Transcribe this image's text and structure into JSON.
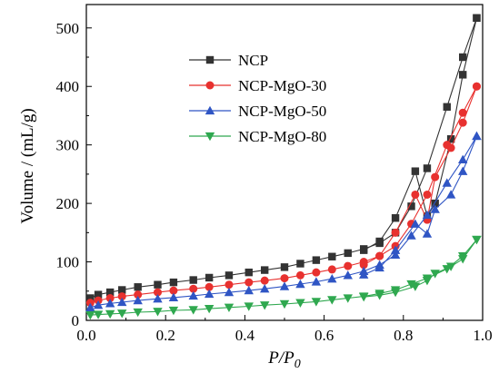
{
  "chart_data": {
    "type": "line",
    "xlabel": {
      "main": "P/P",
      "sub": "0"
    },
    "ylabel": "Volume / (mL/g)",
    "xlim": [
      0.0,
      1.0
    ],
    "ylim": [
      0,
      540
    ],
    "xticks": [
      0.0,
      0.2,
      0.4,
      0.6,
      0.8,
      1.0
    ],
    "xtick_labels": [
      "0.0",
      "0.2",
      "0.4",
      "0.6",
      "0.8",
      "1.0"
    ],
    "yticks": [
      0,
      100,
      200,
      300,
      400,
      500
    ],
    "ytick_labels": [
      "0",
      "100",
      "200",
      "300",
      "400",
      "500"
    ],
    "grid": false,
    "legend_position": "upper-left",
    "series": [
      {
        "name": "NCP",
        "color": "#333333",
        "marker": "square",
        "adsorption": [
          [
            0.01,
            38
          ],
          [
            0.03,
            44
          ],
          [
            0.06,
            48
          ],
          [
            0.09,
            52
          ],
          [
            0.13,
            57
          ],
          [
            0.18,
            61
          ],
          [
            0.22,
            65
          ],
          [
            0.27,
            69
          ],
          [
            0.31,
            73
          ],
          [
            0.36,
            77
          ],
          [
            0.41,
            82
          ],
          [
            0.45,
            86
          ],
          [
            0.5,
            91
          ],
          [
            0.54,
            97
          ],
          [
            0.58,
            103
          ],
          [
            0.62,
            109
          ],
          [
            0.66,
            115
          ],
          [
            0.7,
            122
          ],
          [
            0.74,
            132
          ],
          [
            0.78,
            150
          ],
          [
            0.82,
            195
          ],
          [
            0.86,
            260
          ],
          [
            0.91,
            365
          ],
          [
            0.95,
            450
          ],
          [
            0.985,
            517
          ]
        ],
        "desorption": [
          [
            0.985,
            517
          ],
          [
            0.95,
            420
          ],
          [
            0.92,
            310
          ],
          [
            0.88,
            200
          ],
          [
            0.86,
            178
          ],
          [
            0.83,
            255
          ],
          [
            0.78,
            175
          ],
          [
            0.74,
            135
          ],
          [
            0.7,
            120
          ]
        ]
      },
      {
        "name": "NCP-MgO-30",
        "color": "#e8312f",
        "marker": "circle",
        "adsorption": [
          [
            0.01,
            30
          ],
          [
            0.03,
            34
          ],
          [
            0.06,
            38
          ],
          [
            0.09,
            41
          ],
          [
            0.13,
            44
          ],
          [
            0.18,
            48
          ],
          [
            0.22,
            51
          ],
          [
            0.27,
            54
          ],
          [
            0.31,
            57
          ],
          [
            0.36,
            61
          ],
          [
            0.41,
            65
          ],
          [
            0.45,
            68
          ],
          [
            0.5,
            72
          ],
          [
            0.54,
            77
          ],
          [
            0.58,
            82
          ],
          [
            0.62,
            87
          ],
          [
            0.66,
            93
          ],
          [
            0.7,
            100
          ],
          [
            0.74,
            110
          ],
          [
            0.78,
            127
          ],
          [
            0.82,
            165
          ],
          [
            0.86,
            215
          ],
          [
            0.91,
            300
          ],
          [
            0.95,
            355
          ],
          [
            0.985,
            400
          ]
        ],
        "desorption": [
          [
            0.985,
            400
          ],
          [
            0.95,
            338
          ],
          [
            0.92,
            295
          ],
          [
            0.88,
            245
          ],
          [
            0.86,
            172
          ],
          [
            0.83,
            215
          ],
          [
            0.78,
            150
          ],
          [
            0.74,
            110
          ],
          [
            0.7,
            95
          ]
        ]
      },
      {
        "name": "NCP-MgO-50",
        "color": "#2f55c4",
        "marker": "triangle-up",
        "adsorption": [
          [
            0.01,
            22
          ],
          [
            0.03,
            26
          ],
          [
            0.06,
            29
          ],
          [
            0.09,
            31
          ],
          [
            0.13,
            34
          ],
          [
            0.18,
            37
          ],
          [
            0.22,
            39
          ],
          [
            0.27,
            42
          ],
          [
            0.31,
            45
          ],
          [
            0.36,
            48
          ],
          [
            0.41,
            51
          ],
          [
            0.45,
            54
          ],
          [
            0.5,
            58
          ],
          [
            0.54,
            62
          ],
          [
            0.58,
            66
          ],
          [
            0.62,
            71
          ],
          [
            0.66,
            77
          ],
          [
            0.7,
            84
          ],
          [
            0.74,
            95
          ],
          [
            0.78,
            112
          ],
          [
            0.82,
            145
          ],
          [
            0.86,
            180
          ],
          [
            0.91,
            235
          ],
          [
            0.95,
            275
          ],
          [
            0.985,
            315
          ]
        ],
        "desorption": [
          [
            0.985,
            315
          ],
          [
            0.95,
            255
          ],
          [
            0.92,
            215
          ],
          [
            0.88,
            190
          ],
          [
            0.86,
            148
          ],
          [
            0.83,
            165
          ],
          [
            0.78,
            120
          ],
          [
            0.74,
            90
          ],
          [
            0.7,
            78
          ]
        ]
      },
      {
        "name": "NCP-MgO-80",
        "color": "#2fa84f",
        "marker": "triangle-down",
        "adsorption": [
          [
            0.01,
            9
          ],
          [
            0.03,
            10
          ],
          [
            0.06,
            11
          ],
          [
            0.09,
            12
          ],
          [
            0.13,
            14
          ],
          [
            0.18,
            15
          ],
          [
            0.22,
            17
          ],
          [
            0.27,
            18
          ],
          [
            0.31,
            20
          ],
          [
            0.36,
            22
          ],
          [
            0.41,
            24
          ],
          [
            0.45,
            26
          ],
          [
            0.5,
            28
          ],
          [
            0.54,
            30
          ],
          [
            0.58,
            32
          ],
          [
            0.62,
            35
          ],
          [
            0.66,
            38
          ],
          [
            0.7,
            41
          ],
          [
            0.74,
            46
          ],
          [
            0.78,
            52
          ],
          [
            0.82,
            62
          ],
          [
            0.86,
            72
          ],
          [
            0.91,
            88
          ],
          [
            0.95,
            110
          ],
          [
            0.985,
            138
          ]
        ],
        "desorption": [
          [
            0.985,
            138
          ],
          [
            0.95,
            105
          ],
          [
            0.92,
            92
          ],
          [
            0.88,
            80
          ],
          [
            0.86,
            68
          ],
          [
            0.83,
            58
          ],
          [
            0.78,
            48
          ],
          [
            0.74,
            43
          ],
          [
            0.7,
            40
          ]
        ]
      }
    ]
  }
}
